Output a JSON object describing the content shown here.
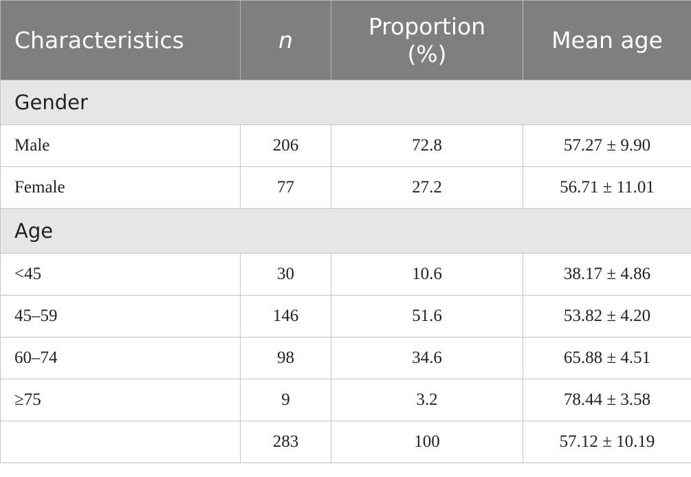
{
  "table": {
    "header": [
      "Characteristics",
      "n",
      "Proportion (%)",
      "Mean age"
    ],
    "sections": [
      {
        "label": "Gender",
        "rows": [
          [
            "Male",
            "206",
            "72.8",
            "57.27 ± 9.90"
          ],
          [
            "Female",
            "77",
            "27.2",
            "56.71 ± 11.01"
          ]
        ]
      },
      {
        "label": "Age",
        "rows": [
          [
            "<45",
            "30",
            "10.6",
            "38.17 ± 4.86"
          ],
          [
            "45–59",
            "146",
            "51.6",
            "53.82 ± 4.20"
          ],
          [
            "60–74",
            "98",
            "34.6",
            "65.88 ± 4.51"
          ],
          [
            "≥75",
            "9",
            "3.2",
            "78.44 ± 3.58"
          ]
        ]
      }
    ],
    "total": [
      "283",
      "100",
      "57.12 ± 10.19"
    ]
  }
}
